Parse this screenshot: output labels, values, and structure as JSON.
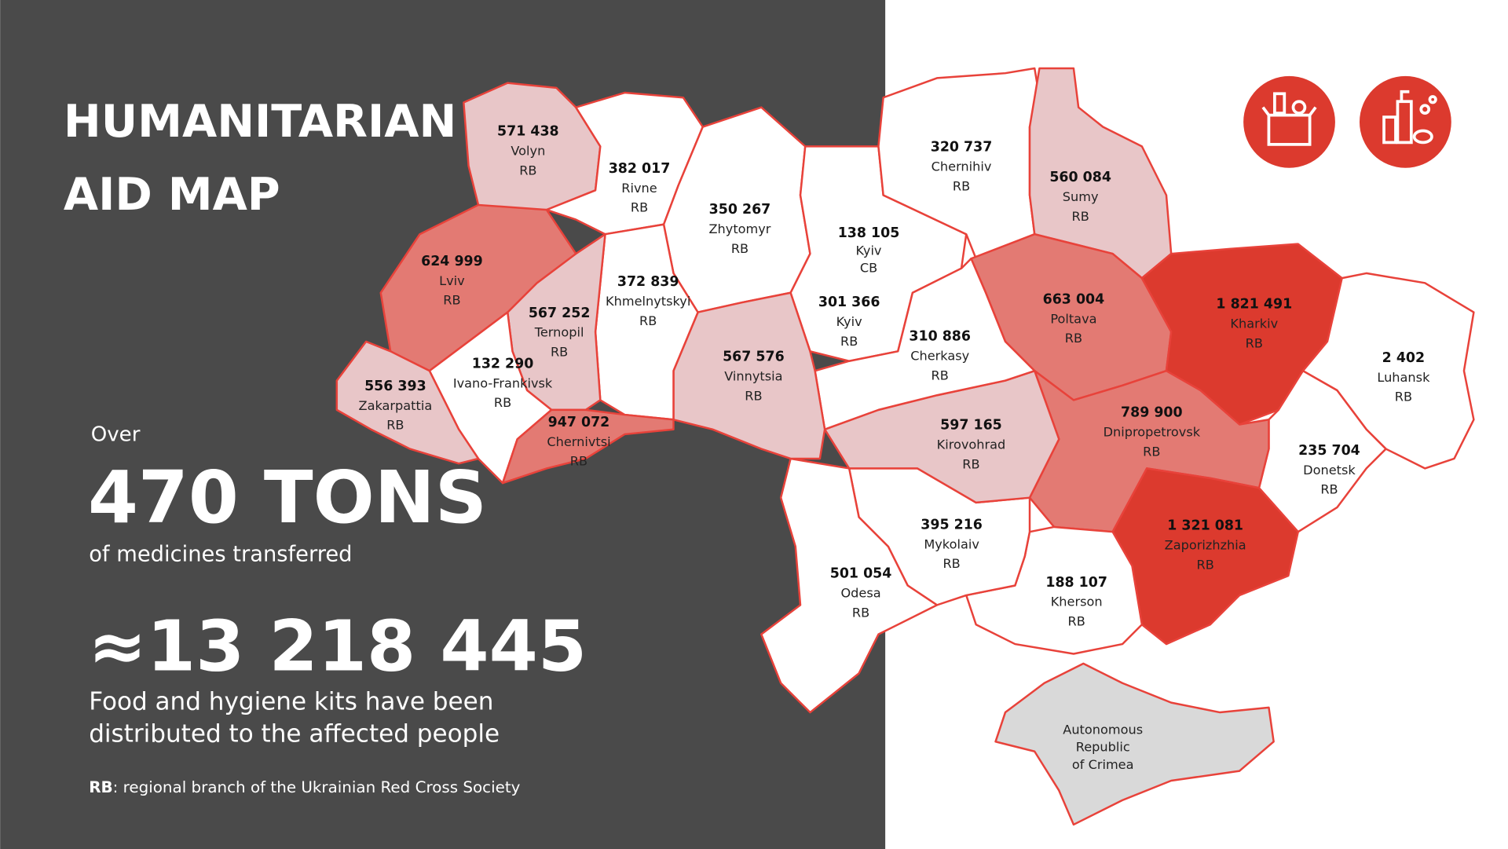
{
  "title": [
    "HUMANITARIAN",
    "AID MAP"
  ],
  "stats": {
    "medicines": {
      "prefix": "Over",
      "amount": "470 TONS",
      "caption": "of medicines transferred"
    },
    "kits": {
      "amount": "≈13 218 445",
      "caption": [
        "Food and hygiene kits have been",
        "distributed to the affected people"
      ]
    }
  },
  "footnote": {
    "abbr": "RB",
    "text": ": regional branch of the Ukrainian Red Cross Society"
  },
  "regions": [
    {
      "name": "Volyn",
      "value": "571 438",
      "branch": "RB",
      "fill": "#e8c6c8"
    },
    {
      "name": "Rivne",
      "value": "382 017",
      "branch": "RB",
      "fill": "#ffffff"
    },
    {
      "name": "Zhytomyr",
      "value": "350 267",
      "branch": "RB",
      "fill": "#ffffff"
    },
    {
      "name": "Kyiv",
      "value": "138 105",
      "branch": "CB",
      "fill": "#ffffff"
    },
    {
      "name": "Kyiv",
      "value": "301 366",
      "branch": "RB",
      "fill": "#ffffff"
    },
    {
      "name": "Chernihiv",
      "value": "320 737",
      "branch": "RB",
      "fill": "#ffffff"
    },
    {
      "name": "Sumy",
      "value": "560 084",
      "branch": "RB",
      "fill": "#e8c6c8"
    },
    {
      "name": "Poltava",
      "value": "663 004",
      "branch": "RB",
      "fill": "#e37a73"
    },
    {
      "name": "Kharkiv",
      "value": "1 821 491",
      "branch": "RB",
      "fill": "#dc3a2e"
    },
    {
      "name": "Luhansk",
      "value": "2 402",
      "branch": "RB",
      "fill": "#ffffff"
    },
    {
      "name": "Donetsk",
      "value": "235 704",
      "branch": "RB",
      "fill": "#ffffff"
    },
    {
      "name": "Dnipropetrovsk",
      "value": "789 900",
      "branch": "RB",
      "fill": "#e37a73"
    },
    {
      "name": "Zaporizhzhia",
      "value": "1 321 081",
      "branch": "RB",
      "fill": "#dc3a2e"
    },
    {
      "name": "Kherson",
      "value": "188 107",
      "branch": "RB",
      "fill": "#ffffff"
    },
    {
      "name": "Mykolaiv",
      "value": "395 216",
      "branch": "RB",
      "fill": "#ffffff"
    },
    {
      "name": "Odesa",
      "value": "501 054",
      "branch": "RB",
      "fill": "#ffffff"
    },
    {
      "name": "Kirovohrad",
      "value": "597 165",
      "branch": "RB",
      "fill": "#e8c6c8"
    },
    {
      "name": "Cherkasy",
      "value": "310 886",
      "branch": "RB",
      "fill": "#ffffff"
    },
    {
      "name": "Vinnytsia",
      "value": "567 576",
      "branch": "RB",
      "fill": "#e8c6c8"
    },
    {
      "name": "Khmelnytskyi",
      "value": "372 839",
      "branch": "RB",
      "fill": "#ffffff"
    },
    {
      "name": "Ternopil",
      "value": "567 252",
      "branch": "RB",
      "fill": "#e8c6c8"
    },
    {
      "name": "Lviv",
      "value": "624 999",
      "branch": "RB",
      "fill": "#e37a73"
    },
    {
      "name": "Ivano-Frankivsk",
      "value": "132 290",
      "branch": "RB",
      "fill": "#ffffff"
    },
    {
      "name": "Zakarpattia",
      "value": "556 393",
      "branch": "RB",
      "fill": "#e8c6c8"
    },
    {
      "name": "Chernivtsi",
      "value": "947 072",
      "branch": "RB",
      "fill": "#e37a73"
    }
  ],
  "crimea": {
    "name": [
      "Autonomous",
      "Republic",
      "of Crimea"
    ],
    "fill": "#d9d9d9"
  }
}
